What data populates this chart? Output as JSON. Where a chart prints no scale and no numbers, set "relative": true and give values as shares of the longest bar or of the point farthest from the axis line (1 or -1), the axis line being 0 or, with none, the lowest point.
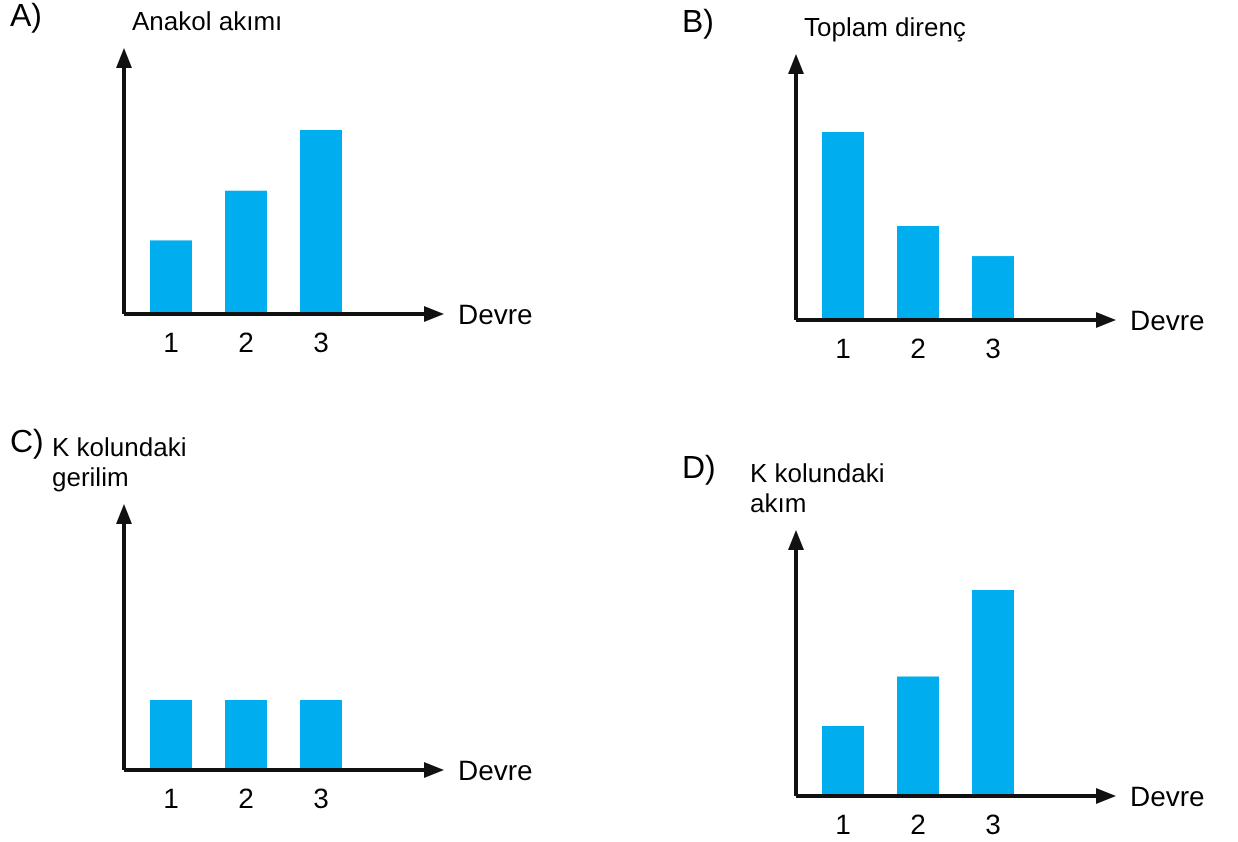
{
  "chart_data": [
    {
      "type": "bar",
      "title": "A)",
      "ylabel": "Anakol akımı",
      "xlabel": "Devre",
      "categories": [
        "1",
        "2",
        "3"
      ],
      "values": [
        0.4,
        0.67,
        1
      ],
      "color": "#00aeef",
      "relative": true
    },
    {
      "type": "bar",
      "title": "B)",
      "ylabel": "Toplam direnç",
      "xlabel": "Devre",
      "categories": [
        "1",
        "2",
        "3"
      ],
      "values": [
        1,
        0.5,
        0.34
      ],
      "color": "#00aeef",
      "relative": true
    },
    {
      "type": "bar",
      "title": "C)",
      "ylabel": "K kolundaki gerilim",
      "xlabel": "Devre",
      "categories": [
        "1",
        "2",
        "3"
      ],
      "values": [
        1,
        1,
        1
      ],
      "color": "#00aeef",
      "relative": true
    },
    {
      "type": "bar",
      "title": "D)",
      "ylabel": "K kolundaki akım",
      "xlabel": "Devre",
      "categories": [
        "1",
        "2",
        "3"
      ],
      "values": [
        0.34,
        0.58,
        1
      ],
      "color": "#00aeef",
      "relative": true
    }
  ]
}
